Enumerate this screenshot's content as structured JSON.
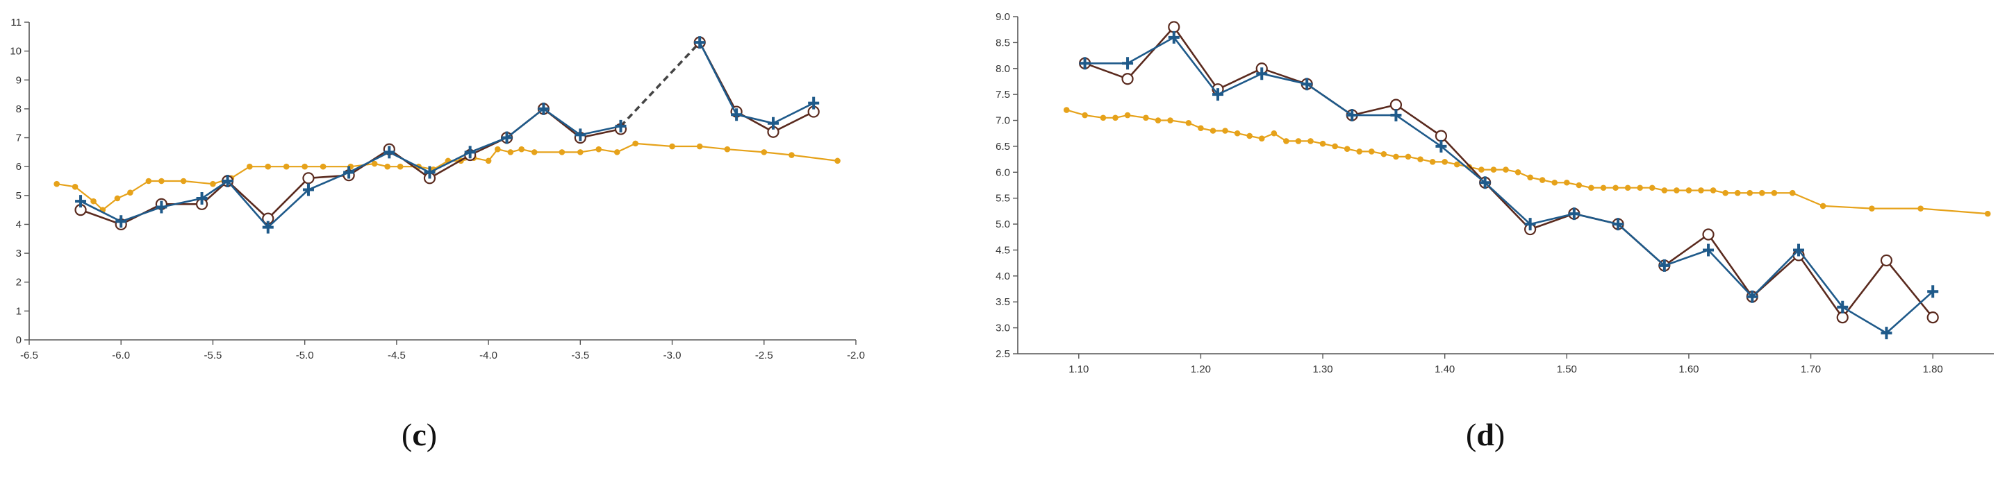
{
  "panels": {
    "c": {
      "open": "(",
      "letter": "c",
      "close": ")"
    },
    "d": {
      "open": "(",
      "letter": "d",
      "close": ")"
    }
  },
  "colors": {
    "series_a": "#1f5a8a",
    "series_b": "#5a2a1e",
    "series_c": "#e6a21a",
    "dashed": "#444444"
  },
  "chart_data": [
    {
      "id": "c",
      "type": "line",
      "xlim": [
        -6.5,
        -2.0
      ],
      "ylim": [
        0,
        11
      ],
      "xticks": [
        -6.5,
        -6.0,
        -5.5,
        -5.0,
        -4.5,
        -4.0,
        -3.5,
        -3.0,
        -2.5,
        -2.0
      ],
      "xtick_labels": [
        "-6.5",
        "-6.0",
        "-5.5",
        "-5.0",
        "-4.5",
        "-4.0",
        "-3.5",
        "-3.0",
        "-2.5",
        "-2.0"
      ],
      "yticks": [
        0,
        1,
        2,
        3,
        4,
        5,
        6,
        7,
        8,
        9,
        10,
        11
      ],
      "ytick_labels": [
        "0",
        "1",
        "2",
        "3",
        "4",
        "5",
        "6",
        "7",
        "8",
        "9",
        "10",
        "11"
      ],
      "grid": false,
      "dashed_segment": {
        "x": [
          -3.28,
          -2.85
        ],
        "y": [
          7.4,
          10.3
        ]
      },
      "series": [
        {
          "marker": "plus",
          "color": "#1f5a8a",
          "x": [
            -6.22,
            -6.0,
            -5.78,
            -5.56,
            -5.42,
            -5.2,
            -4.98,
            -4.76,
            -4.54,
            -4.32,
            -4.1,
            -3.9,
            -3.7,
            -3.5,
            -3.28,
            -2.85,
            -2.65,
            -2.45,
            -2.23
          ],
          "y": [
            4.8,
            4.1,
            4.6,
            4.9,
            5.5,
            3.9,
            5.2,
            5.8,
            6.5,
            5.8,
            6.5,
            7.0,
            8.0,
            7.1,
            7.4,
            10.3,
            7.8,
            7.5,
            8.2
          ]
        },
        {
          "marker": "circle",
          "color": "#5a2a1e",
          "x": [
            -6.22,
            -6.0,
            -5.78,
            -5.56,
            -5.42,
            -5.2,
            -4.98,
            -4.76,
            -4.54,
            -4.32,
            -4.1,
            -3.9,
            -3.7,
            -3.5,
            -3.28,
            -2.85,
            -2.65,
            -2.45,
            -2.23
          ],
          "y": [
            4.5,
            4.0,
            4.7,
            4.7,
            5.5,
            4.2,
            5.6,
            5.7,
            6.6,
            5.6,
            6.4,
            7.0,
            8.0,
            7.0,
            7.3,
            10.3,
            7.9,
            7.2,
            7.9
          ]
        },
        {
          "marker": "dot",
          "color": "#e6a21a",
          "x": [
            -6.35,
            -6.25,
            -6.15,
            -6.1,
            -6.02,
            -5.95,
            -5.85,
            -5.78,
            -5.66,
            -5.5,
            -5.4,
            -5.3,
            -5.2,
            -5.1,
            -5.0,
            -4.9,
            -4.75,
            -4.62,
            -4.55,
            -4.48,
            -4.38,
            -4.3,
            -4.22,
            -4.15,
            -4.08,
            -4.0,
            -3.95,
            -3.88,
            -3.82,
            -3.75,
            -3.6,
            -3.5,
            -3.4,
            -3.3,
            -3.2,
            -3.0,
            -2.85,
            -2.7,
            -2.5,
            -2.35,
            -2.1
          ],
          "y": [
            5.4,
            5.3,
            4.8,
            4.5,
            4.9,
            5.1,
            5.5,
            5.5,
            5.5,
            5.4,
            5.6,
            6.0,
            6.0,
            6.0,
            6.0,
            6.0,
            6.0,
            6.1,
            6.0,
            6.0,
            6.0,
            5.9,
            6.2,
            6.2,
            6.3,
            6.2,
            6.6,
            6.5,
            6.6,
            6.5,
            6.5,
            6.5,
            6.6,
            6.5,
            6.8,
            6.7,
            6.7,
            6.6,
            6.5,
            6.4,
            6.2
          ]
        }
      ]
    },
    {
      "id": "d",
      "type": "line",
      "xlim": [
        1.05,
        1.85
      ],
      "ylim": [
        2.5,
        9.0
      ],
      "xticks": [
        1.1,
        1.2,
        1.3,
        1.4,
        1.5,
        1.6,
        1.7,
        1.8
      ],
      "xtick_labels": [
        "1.10",
        "1.20",
        "1.30",
        "1.40",
        "1.50",
        "1.60",
        "1.70",
        "1.80"
      ],
      "yticks": [
        2.5,
        3.0,
        3.5,
        4.0,
        4.5,
        5.0,
        5.5,
        6.0,
        6.5,
        7.0,
        7.5,
        8.0,
        8.5,
        9.0
      ],
      "ytick_labels": [
        "2.5",
        "3.0",
        "3.5",
        "4.0",
        "4.5",
        "5.0",
        "5.5",
        "6.0",
        "6.5",
        "7.0",
        "7.5",
        "8.0",
        "8.5",
        "9.0"
      ],
      "grid": false,
      "series": [
        {
          "marker": "plus",
          "color": "#1f5a8a",
          "x": [
            1.105,
            1.14,
            1.178,
            1.214,
            1.25,
            1.287,
            1.324,
            1.36,
            1.397,
            1.433,
            1.47,
            1.506,
            1.542,
            1.58,
            1.616,
            1.652,
            1.69,
            1.726,
            1.762,
            1.8
          ],
          "y": [
            8.1,
            8.1,
            8.6,
            7.5,
            7.9,
            7.7,
            7.1,
            7.1,
            6.5,
            5.8,
            5.0,
            5.2,
            5.0,
            4.2,
            4.5,
            3.6,
            4.5,
            3.4,
            2.9,
            3.7
          ]
        },
        {
          "marker": "circle",
          "color": "#5a2a1e",
          "x": [
            1.105,
            1.14,
            1.178,
            1.214,
            1.25,
            1.287,
            1.324,
            1.36,
            1.397,
            1.433,
            1.47,
            1.506,
            1.542,
            1.58,
            1.616,
            1.652,
            1.69,
            1.726,
            1.762,
            1.8
          ],
          "y": [
            8.1,
            7.8,
            8.8,
            7.6,
            8.0,
            7.7,
            7.1,
            7.3,
            6.7,
            5.8,
            4.9,
            5.2,
            5.0,
            4.2,
            4.8,
            3.6,
            4.4,
            3.2,
            4.3,
            3.2
          ]
        },
        {
          "marker": "dot",
          "color": "#e6a21a",
          "x": [
            1.09,
            1.105,
            1.12,
            1.13,
            1.14,
            1.155,
            1.165,
            1.175,
            1.19,
            1.2,
            1.21,
            1.22,
            1.23,
            1.24,
            1.25,
            1.26,
            1.27,
            1.28,
            1.29,
            1.3,
            1.31,
            1.32,
            1.33,
            1.34,
            1.35,
            1.36,
            1.37,
            1.38,
            1.39,
            1.4,
            1.41,
            1.42,
            1.43,
            1.44,
            1.45,
            1.46,
            1.47,
            1.48,
            1.49,
            1.5,
            1.51,
            1.52,
            1.53,
            1.54,
            1.55,
            1.56,
            1.57,
            1.58,
            1.59,
            1.6,
            1.61,
            1.62,
            1.63,
            1.64,
            1.65,
            1.66,
            1.67,
            1.685,
            1.71,
            1.75,
            1.79,
            1.845
          ],
          "y": [
            7.2,
            7.1,
            7.05,
            7.05,
            7.1,
            7.05,
            7.0,
            7.0,
            6.95,
            6.85,
            6.8,
            6.8,
            6.75,
            6.7,
            6.65,
            6.75,
            6.6,
            6.6,
            6.6,
            6.55,
            6.5,
            6.45,
            6.4,
            6.4,
            6.35,
            6.3,
            6.3,
            6.25,
            6.2,
            6.2,
            6.15,
            6.1,
            6.05,
            6.05,
            6.05,
            6.0,
            5.9,
            5.85,
            5.8,
            5.8,
            5.75,
            5.7,
            5.7,
            5.7,
            5.7,
            5.7,
            5.7,
            5.65,
            5.65,
            5.65,
            5.65,
            5.65,
            5.6,
            5.6,
            5.6,
            5.6,
            5.6,
            5.6,
            5.35,
            5.3,
            5.3,
            5.2
          ]
        }
      ]
    }
  ]
}
